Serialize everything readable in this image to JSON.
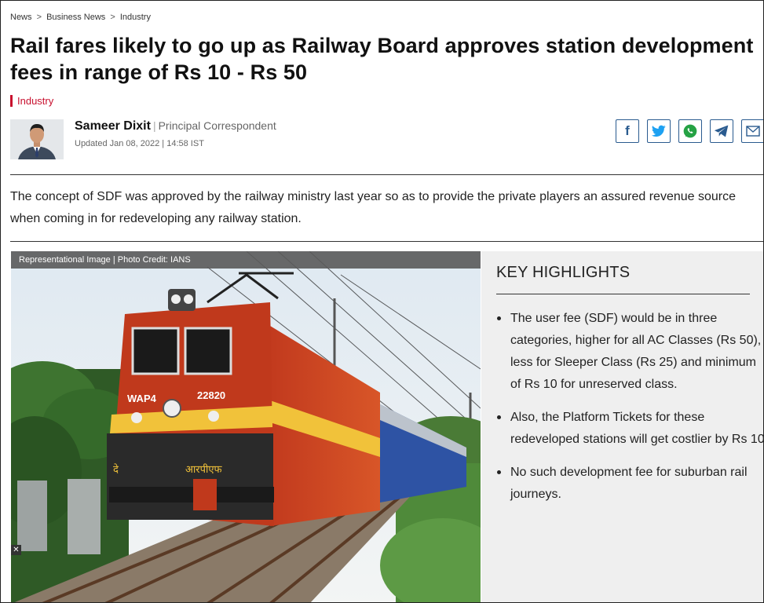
{
  "breadcrumb": {
    "items": [
      "News",
      "Business News",
      "Industry"
    ],
    "separator": ">"
  },
  "article": {
    "headline": "Rail fares likely to go up as Railway Board approves station development fees in range of Rs 10 - Rs 50",
    "category": "Industry",
    "author_name": "Sameer Dixit",
    "author_role": "Principal Correspondent",
    "updated": "Updated Jan 08, 2022 | 14:58 IST",
    "summary": "The concept of SDF was approved by the railway ministry last year so as to provide the private players an assured revenue source when coming in for redeveloping any railway station.",
    "image_caption": "Representational Image  |  Photo Credit: IANS",
    "close_glyph": "✕"
  },
  "share": {
    "icons": [
      "facebook-icon",
      "twitter-icon",
      "whatsapp-icon",
      "telegram-icon",
      "mail-icon"
    ],
    "facebook_glyph": "f"
  },
  "key_highlights": {
    "title": "KEY HIGHLIGHTS",
    "items": [
      "The user fee (SDF) would be in three categories, higher for all AC Classes (Rs 50), less for Sleeper Class (Rs 25) and minimum of Rs 10 for unreserved class.",
      "Also, the Platform Tickets for these redeveloped stations will get costlier by Rs 10.",
      "No such development fee for suburban rail journeys."
    ]
  },
  "locomotive": {
    "model": "WAP4",
    "number": "22820",
    "hindi_left": "दे",
    "hindi_right": "आरपीएफ"
  },
  "colors": {
    "accent_red": "#c8102e",
    "share_border": "#2a5b8f",
    "highlights_bg": "#efefef"
  }
}
